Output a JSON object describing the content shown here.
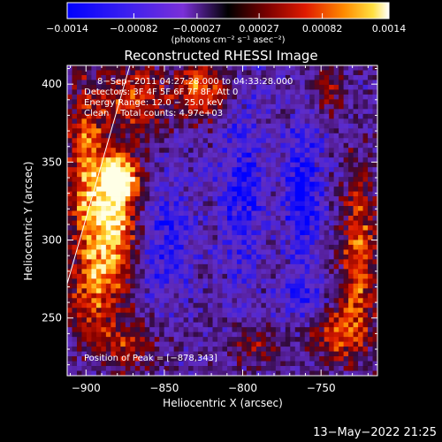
{
  "chart_data": {
    "type": "heatmap",
    "title": "Reconstructed RHESSI Image",
    "xlabel": "Heliocentric X (arcsec)",
    "ylabel": "Heliocentric Y (arcsec)",
    "xlim": [
      -912,
      -714
    ],
    "ylim": [
      213,
      412
    ],
    "x_ticks": [
      -900,
      -850,
      -800,
      -750
    ],
    "x_tick_labels": [
      "−900",
      "−850",
      "−800",
      "−750"
    ],
    "y_ticks": [
      250,
      300,
      350,
      400
    ],
    "y_tick_labels": [
      "250",
      "300",
      "350",
      "400"
    ],
    "colorbar": {
      "min": -0.0014,
      "max": 0.0014,
      "ticks": [
        -0.0014,
        -0.00082,
        -0.00027,
        0.00027,
        0.00082,
        0.0014
      ],
      "tick_labels": [
        "−0.0014",
        "−0.00082",
        "−0.00027",
        "0.00027",
        "0.00082",
        "0.0014"
      ],
      "units_label": "(photons cm⁻² s⁻¹ asec⁻²)"
    },
    "annotations": [
      "8−Sep−2011 04:27:28.000 to 04:33:28.000",
      "Detectors: 3F 4F 5F 6F 7F 8F, Att 0",
      "Energy Range: 12.0 − 25.0 keV",
      "Clean    Total counts: 4.97e+03"
    ],
    "peak_text": "Position of Peak = [−878,343]",
    "peak": [
      -878,
      343
    ],
    "limb_line": {
      "x": [
        -912,
        -872
      ],
      "y": [
        272,
        412
      ]
    },
    "grid": false,
    "sources": [
      {
        "x": -900,
        "y": 345,
        "sx": 9,
        "sy": 40,
        "amp": 0.9
      },
      {
        "x": -878,
        "y": 340,
        "sx": 9,
        "sy": 10,
        "amp": 1.25
      },
      {
        "x": -882,
        "y": 310,
        "sx": 10,
        "sy": 25,
        "amp": 1.15
      },
      {
        "x": -868,
        "y": 390,
        "sx": 14,
        "sy": 16,
        "amp": 0.8
      },
      {
        "x": -895,
        "y": 265,
        "sx": 12,
        "sy": 22,
        "amp": 0.7
      },
      {
        "x": -872,
        "y": 232,
        "sx": 14,
        "sy": 12,
        "amp": 0.55
      },
      {
        "x": -826,
        "y": 395,
        "sx": 11,
        "sy": 12,
        "amp": 0.95
      },
      {
        "x": -726,
        "y": 290,
        "sx": 8,
        "sy": 38,
        "amp": 0.85
      },
      {
        "x": -740,
        "y": 240,
        "sx": 12,
        "sy": 14,
        "amp": 0.7
      },
      {
        "x": -792,
        "y": 232,
        "sx": 10,
        "sy": 8,
        "amp": 0.55
      },
      {
        "x": -745,
        "y": 395,
        "sx": 8,
        "sy": 10,
        "amp": 0.45
      },
      {
        "x": -800,
        "y": 330,
        "sx": 10,
        "sy": 40,
        "amp": -0.55
      },
      {
        "x": -762,
        "y": 330,
        "sx": 8,
        "sy": 30,
        "amp": -0.7
      },
      {
        "x": -848,
        "y": 300,
        "sx": 12,
        "sy": 28,
        "amp": -0.45
      },
      {
        "x": -760,
        "y": 262,
        "sx": 10,
        "sy": 10,
        "amp": -0.5
      }
    ]
  },
  "footer": {
    "date": "13−May−2022 21:25"
  }
}
